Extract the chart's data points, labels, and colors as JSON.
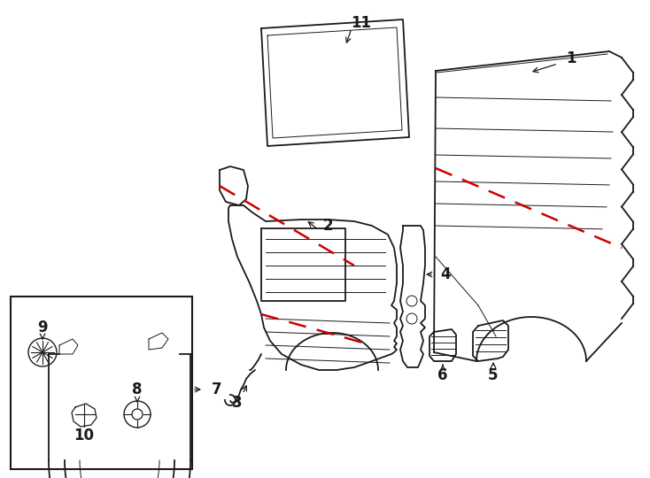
{
  "bg": "#ffffff",
  "lc": "#1a1a1a",
  "rc": "#cc0000",
  "fig_w": 7.34,
  "fig_h": 5.4,
  "dpi": 100
}
